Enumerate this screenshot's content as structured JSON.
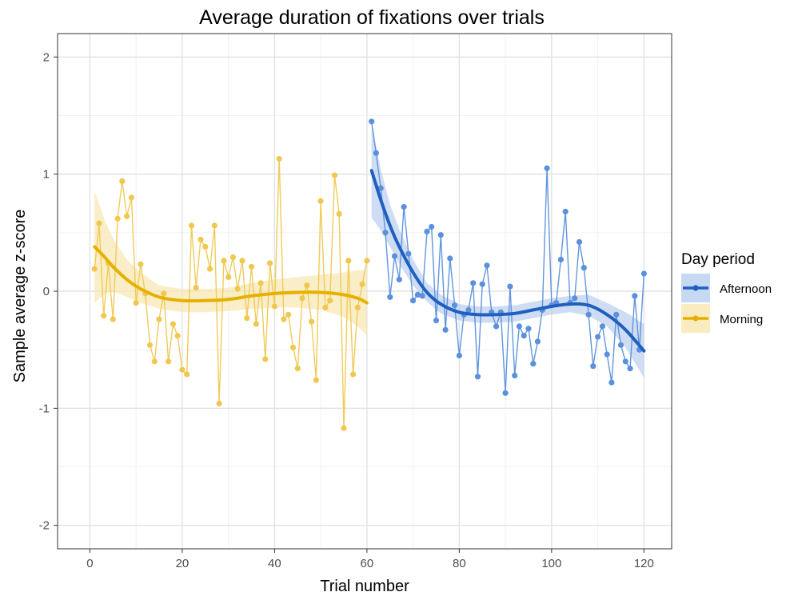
{
  "chart_data": {
    "type": "line",
    "title": "Average duration of fixations over trials",
    "xlabel": "Trial number",
    "ylabel": "Sample average z-score",
    "xlim": [
      -7,
      126
    ],
    "ylim": [
      -2.2,
      2.2
    ],
    "x_ticks": [
      0,
      20,
      40,
      60,
      80,
      100,
      120
    ],
    "x_tick_labels": [
      "0",
      "20",
      "40",
      "60",
      "80",
      "100",
      "120"
    ],
    "y_ticks": [
      -2,
      -1,
      0,
      1,
      2
    ],
    "y_tick_labels": [
      "-2",
      "-1",
      "0",
      "1",
      "2"
    ],
    "grid": true,
    "legend": {
      "title": "Day period",
      "position": "right"
    },
    "series": [
      {
        "name": "Afternoon",
        "color": "#1f5fbf",
        "x": [
          61,
          62,
          63,
          64,
          65,
          66,
          67,
          68,
          69,
          70,
          71,
          72,
          73,
          74,
          75,
          76,
          77,
          78,
          79,
          80,
          81,
          82,
          83,
          84,
          85,
          86,
          87,
          88,
          89,
          90,
          91,
          92,
          93,
          94,
          95,
          96,
          97,
          98,
          99,
          100,
          101,
          102,
          103,
          104,
          105,
          106,
          107,
          108,
          109,
          110,
          111,
          112,
          113,
          114,
          115,
          116,
          117,
          118,
          119,
          120
        ],
        "y": [
          1.45,
          1.18,
          0.88,
          0.5,
          -0.05,
          0.3,
          0.1,
          0.72,
          0.32,
          -0.08,
          -0.03,
          -0.04,
          0.51,
          0.55,
          -0.25,
          0.48,
          -0.33,
          0.28,
          -0.12,
          -0.55,
          -0.2,
          -0.16,
          0.07,
          -0.73,
          0.06,
          0.22,
          -0.18,
          -0.3,
          -0.18,
          -0.87,
          0.04,
          -0.72,
          -0.3,
          -0.38,
          -0.32,
          -0.62,
          -0.43,
          -0.16,
          1.05,
          -0.12,
          -0.1,
          0.27,
          0.68,
          -0.1,
          -0.06,
          0.42,
          0.2,
          -0.2,
          -0.64,
          -0.39,
          -0.3,
          -0.54,
          -0.78,
          -0.2,
          -0.46,
          -0.6,
          -0.66,
          -0.04,
          -0.5,
          0.15
        ],
        "smooth_x": [
          61,
          63,
          65,
          67,
          70,
          73,
          76,
          80,
          84,
          88,
          92,
          96,
          100,
          104,
          108,
          112,
          116,
          120
        ],
        "smooth_y": [
          1.03,
          0.78,
          0.56,
          0.38,
          0.16,
          -0.01,
          -0.11,
          -0.18,
          -0.2,
          -0.2,
          -0.19,
          -0.16,
          -0.13,
          -0.11,
          -0.12,
          -0.2,
          -0.33,
          -0.51
        ],
        "band_lo": [
          0.63,
          0.52,
          0.38,
          0.23,
          0.05,
          -0.09,
          -0.19,
          -0.25,
          -0.27,
          -0.27,
          -0.26,
          -0.23,
          -0.2,
          -0.18,
          -0.21,
          -0.3,
          -0.48,
          -0.74
        ],
        "band_hi": [
          1.43,
          1.04,
          0.74,
          0.53,
          0.27,
          0.07,
          -0.03,
          -0.11,
          -0.13,
          -0.13,
          -0.12,
          -0.09,
          -0.06,
          -0.04,
          -0.03,
          -0.1,
          -0.18,
          -0.28
        ]
      },
      {
        "name": "Morning",
        "color": "#e6b000",
        "x": [
          1,
          2,
          3,
          4,
          5,
          6,
          7,
          8,
          9,
          10,
          11,
          12,
          13,
          14,
          15,
          16,
          17,
          18,
          19,
          20,
          21,
          22,
          23,
          24,
          25,
          26,
          27,
          28,
          29,
          30,
          31,
          32,
          33,
          34,
          35,
          36,
          37,
          38,
          39,
          40,
          41,
          42,
          43,
          44,
          45,
          46,
          47,
          48,
          49,
          50,
          51,
          52,
          53,
          54,
          55,
          56,
          57,
          58,
          59,
          60
        ],
        "y": [
          0.19,
          0.58,
          -0.21,
          0.24,
          -0.24,
          0.62,
          0.94,
          0.64,
          0.8,
          -0.1,
          0.23,
          -0.02,
          -0.46,
          -0.6,
          -0.24,
          -0.02,
          -0.6,
          -0.28,
          -0.38,
          -0.67,
          -0.71,
          0.56,
          0.03,
          0.44,
          0.38,
          0.19,
          0.56,
          -0.96,
          0.26,
          0.12,
          0.29,
          0.02,
          0.26,
          -0.23,
          0.21,
          -0.28,
          0.07,
          -0.58,
          0.24,
          -0.13,
          1.13,
          -0.24,
          -0.2,
          -0.48,
          -0.66,
          -0.06,
          0.05,
          -0.26,
          -0.76,
          0.77,
          -0.14,
          -0.08,
          0.99,
          0.66,
          -1.17,
          0.26,
          -0.71,
          -0.14,
          0.06,
          0.26
        ],
        "smooth_x": [
          1,
          3,
          5,
          8,
          11,
          15,
          20,
          25,
          30,
          35,
          40,
          45,
          50,
          55,
          58,
          60
        ],
        "smooth_y": [
          0.38,
          0.3,
          0.21,
          0.1,
          0.02,
          -0.05,
          -0.08,
          -0.08,
          -0.07,
          -0.04,
          -0.02,
          -0.01,
          -0.01,
          -0.03,
          -0.06,
          -0.1
        ],
        "band_lo": [
          -0.1,
          -0.03,
          0.0,
          -0.05,
          -0.1,
          -0.15,
          -0.18,
          -0.18,
          -0.17,
          -0.15,
          -0.14,
          -0.14,
          -0.16,
          -0.22,
          -0.3,
          -0.38
        ],
        "band_hi": [
          0.86,
          0.63,
          0.45,
          0.27,
          0.16,
          0.05,
          0.02,
          0.02,
          0.03,
          0.07,
          0.1,
          0.12,
          0.14,
          0.16,
          0.18,
          0.18
        ]
      }
    ]
  }
}
